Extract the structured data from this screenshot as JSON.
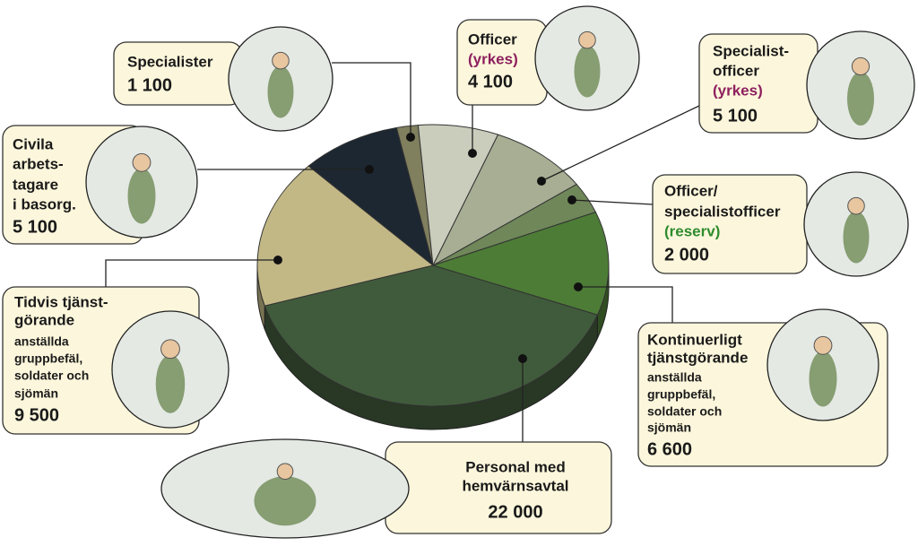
{
  "chart_data": {
    "type": "pie",
    "categories": [
      [
        "Specialister"
      ],
      [
        "Officer"
      ],
      [
        "Specialist-",
        "officer"
      ],
      [
        "Officer/",
        "specialistofficer"
      ],
      [
        "Kontinuerligt",
        "tjänstgörande"
      ],
      [
        "Personal med",
        "hemvärnsavtal"
      ],
      [
        "Tidvis tjänst-",
        "görande"
      ],
      [
        "Civila",
        "arbets-",
        "tagare",
        "i basorg."
      ]
    ],
    "tags": [
      null,
      {
        "text": "(yrkes)",
        "color": "#8e1f5e"
      },
      {
        "text": "(yrkes)",
        "color": "#8e1f5e"
      },
      {
        "text": "(reserv)",
        "color": "#2e8b2e"
      },
      null,
      null,
      null,
      null
    ],
    "notes": [
      null,
      null,
      null,
      null,
      [
        "anställda",
        "gruppbefäl,",
        "soldater och",
        "sjömän"
      ],
      null,
      [
        "anställda",
        "gruppbefäl,",
        "soldater och",
        "sjömän"
      ],
      null
    ],
    "values": [
      1100,
      4100,
      5100,
      2000,
      6600,
      22000,
      9500,
      5100
    ],
    "value_labels": [
      "1 100",
      "4 100",
      "5 100",
      "2 000",
      "6 600",
      "22 000",
      "9 500",
      "5 100"
    ],
    "colors": [
      "#807f5e",
      "#cbcdbc",
      "#a7ae94",
      "#6f8759",
      "#4d7c36",
      "#405b3b",
      "#c2b886",
      "#1d2731"
    ]
  }
}
